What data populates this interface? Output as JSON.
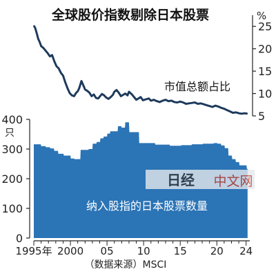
{
  "chart_data": [
    {
      "type": "line",
      "title": "全球股价指数剔除日本股票",
      "unit_label": "%",
      "series": [
        {
          "name": "市值总额占比",
          "x": [
            1995.0,
            1995.2,
            1995.4,
            1995.6,
            1995.8,
            1996.0,
            1996.3,
            1996.6,
            1996.9,
            1997.2,
            1997.5,
            1997.8,
            1998.1,
            1998.4,
            1998.7,
            1999.0,
            1999.3,
            1999.6,
            1999.9,
            2000.2,
            2000.5,
            2000.8,
            2001.0,
            2001.2,
            2001.5,
            2001.8,
            2002.0,
            2002.3,
            2002.6,
            2002.9,
            2003.2,
            2003.5,
            2003.8,
            2004.0,
            2004.3,
            2004.6,
            2004.9,
            2005.2,
            2005.5,
            2005.8,
            2006.0,
            2006.3,
            2006.6,
            2006.9,
            2007.2,
            2007.5,
            2007.8,
            2008.0,
            2008.4,
            2008.8,
            2009.0,
            2009.3,
            2009.6,
            2009.9,
            2010.3,
            2010.7,
            2011.0,
            2011.4,
            2011.8,
            2012.2,
            2012.6,
            2013.0,
            2013.4,
            2013.8,
            2014.2,
            2014.6,
            2015.0,
            2015.4,
            2015.8,
            2016.2,
            2016.6,
            2017.0,
            2017.4,
            2017.8,
            2018.2,
            2018.6,
            2019.0,
            2019.4,
            2019.8,
            2020.2,
            2020.6,
            2021.0,
            2021.4,
            2021.8,
            2022.2,
            2022.6,
            2023.0,
            2023.4,
            2023.8,
            2024.2
          ],
          "values": [
            25.2,
            24.6,
            23.5,
            22.2,
            21.5,
            20.6,
            20.2,
            19.6,
            19.0,
            18.3,
            18.6,
            17.2,
            16.1,
            15.6,
            14.6,
            14.0,
            12.5,
            11.2,
            10.1,
            9.6,
            9.4,
            10.2,
            10.5,
            11.2,
            12.8,
            11.7,
            10.9,
            10.6,
            10.2,
            9.4,
            9.8,
            9.0,
            8.9,
            9.3,
            9.9,
            9.6,
            9.1,
            8.8,
            9.2,
            9.7,
            10.4,
            10.8,
            10.2,
            9.4,
            9.7,
            10.0,
            9.6,
            10.4,
            9.8,
            9.0,
            8.6,
            8.9,
            9.2,
            8.5,
            8.7,
            8.9,
            8.4,
            8.6,
            8.3,
            8.1,
            8.4,
            8.6,
            8.3,
            8.4,
            8.1,
            8.0,
            8.2,
            8.0,
            7.7,
            7.8,
            7.9,
            8.0,
            7.7,
            7.8,
            7.6,
            7.4,
            7.2,
            7.0,
            7.3,
            7.1,
            6.8,
            6.6,
            6.3,
            6.0,
            5.7,
            5.8,
            5.6,
            5.5,
            5.6,
            5.5
          ]
        }
      ],
      "yticks": [
        5,
        10,
        15,
        20,
        25
      ],
      "ylim": [
        5,
        27.5
      ]
    },
    {
      "type": "area",
      "unit_label": "只",
      "series": [
        {
          "name": "纳入股指的日本股票数量",
          "x": [
            1995.0,
            1995.95,
            1996.0,
            1996.6,
            1996.65,
            1997.2,
            1997.25,
            1997.75,
            1997.8,
            1998.3,
            1998.35,
            1999.05,
            1999.1,
            2000.0,
            2000.05,
            2000.5,
            2000.55,
            2001.35,
            2001.4,
            2002.45,
            2002.5,
            2003.0,
            2003.05,
            2003.55,
            2003.6,
            2004.05,
            2004.1,
            2004.5,
            2004.55,
            2005.0,
            2005.05,
            2005.4,
            2005.45,
            2006.45,
            2006.5,
            2006.95,
            2007.0,
            2007.45,
            2007.5,
            2008.0,
            2008.05,
            2009.35,
            2009.4,
            2011.55,
            2011.6,
            2013.55,
            2013.6,
            2015.1,
            2015.15,
            2016.55,
            2016.6,
            2018.05,
            2018.1,
            2019.55,
            2019.6,
            2020.05,
            2020.1,
            2020.55,
            2020.6,
            2021.05,
            2021.1,
            2021.55,
            2021.6,
            2022.05,
            2022.1,
            2022.55,
            2022.6,
            2023.05,
            2023.1,
            2024.05,
            2024.1,
            2024.2
          ],
          "values": [
            316,
            316,
            310,
            310,
            306,
            306,
            302,
            302,
            294,
            294,
            284,
            284,
            278,
            278,
            268,
            268,
            266,
            266,
            297,
            297,
            300,
            300,
            318,
            318,
            324,
            324,
            336,
            336,
            342,
            342,
            352,
            352,
            360,
            360,
            377,
            377,
            372,
            372,
            390,
            390,
            357,
            357,
            320,
            320,
            315,
            315,
            311,
            311,
            313,
            313,
            316,
            316,
            318,
            318,
            320,
            320,
            318,
            318,
            312,
            312,
            303,
            303,
            278,
            278,
            266,
            266,
            256,
            256,
            245,
            245,
            233,
            233
          ]
        }
      ],
      "yticks": [
        0,
        100,
        200,
        300,
        400
      ],
      "ylim": [
        0,
        400
      ]
    }
  ],
  "xaxis": {
    "ticks": [
      {
        "x": 1995,
        "label": "1995年"
      },
      {
        "x": 2000,
        "label": "2000"
      },
      {
        "x": 2005,
        "label": "05"
      },
      {
        "x": 2010,
        "label": "10"
      },
      {
        "x": 2015,
        "label": "15"
      },
      {
        "x": 2020,
        "label": "20"
      },
      {
        "x": 2024,
        "label": "24"
      }
    ],
    "xlim": [
      1995,
      2024.5
    ]
  },
  "source": "（数据来源）MSCI",
  "watermark": {
    "brand": "日经",
    "text": "中文网"
  },
  "colors": {
    "line": "#1d3a5c",
    "area": "#2b74b6",
    "axis": "#222222",
    "area_label": "#ffffff"
  }
}
